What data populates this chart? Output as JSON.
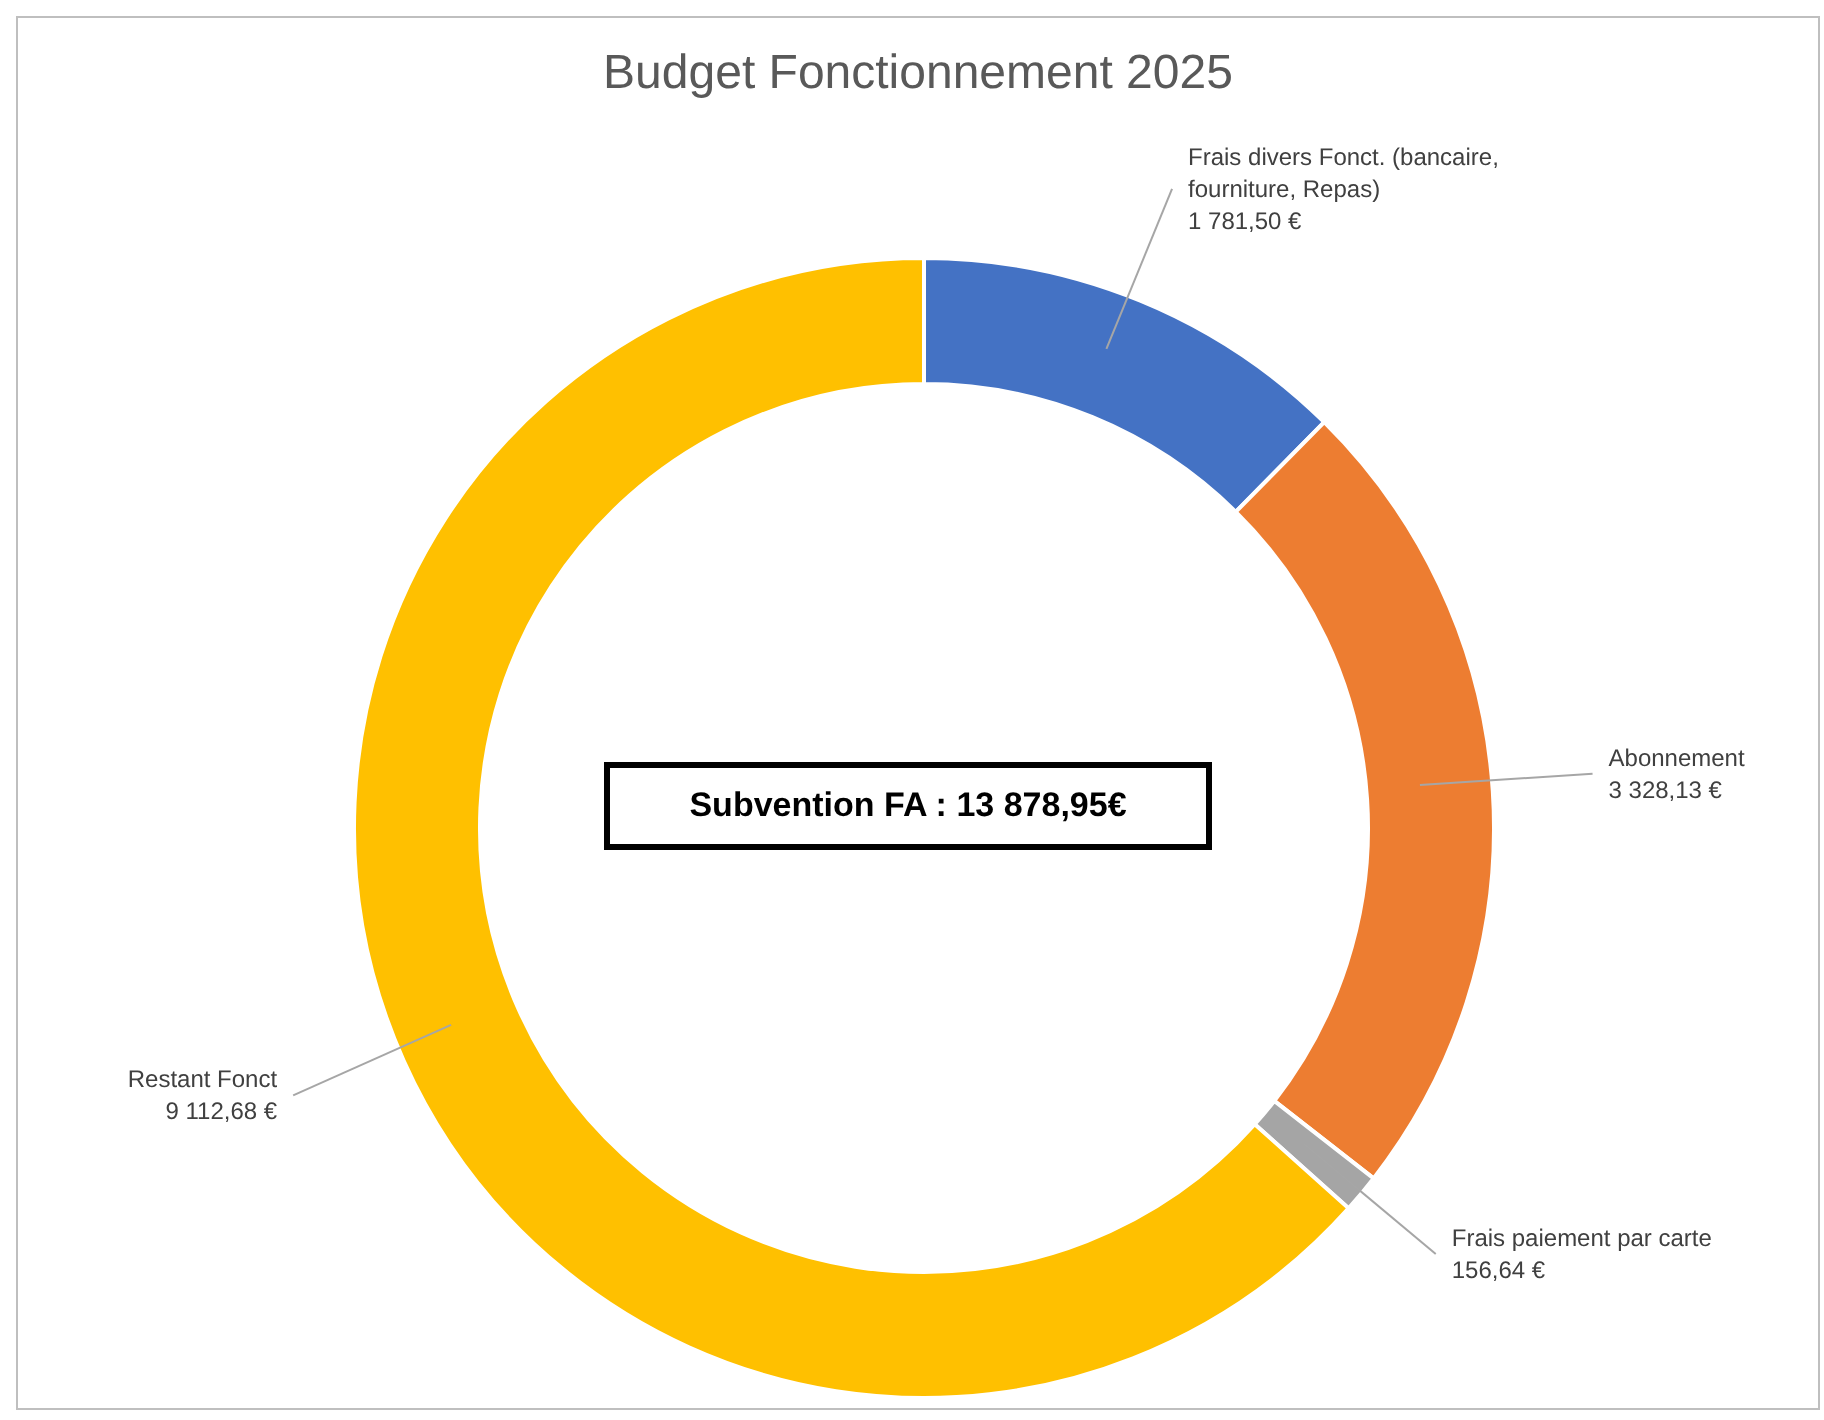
{
  "chart_data": {
    "type": "donut",
    "title": "Budget Fonctionnement 2025",
    "categories": [
      "Frais divers Fonct. (bancaire, fourniture, Repas)",
      "Abonnement",
      "Frais paiement par carte",
      "Restant Fonct"
    ],
    "values": [
      1781.5,
      3328.13,
      156.64,
      9112.68
    ],
    "value_labels": [
      "1 781,50 €",
      "3 328,13 €",
      "156,64 €",
      "9 112,68 €"
    ],
    "colors": [
      "#4472c4",
      "#ed7d31",
      "#a5a5a5",
      "#ffc000"
    ],
    "annotations": [
      "Subvention FA : 13 878,95€"
    ],
    "legend": false
  }
}
